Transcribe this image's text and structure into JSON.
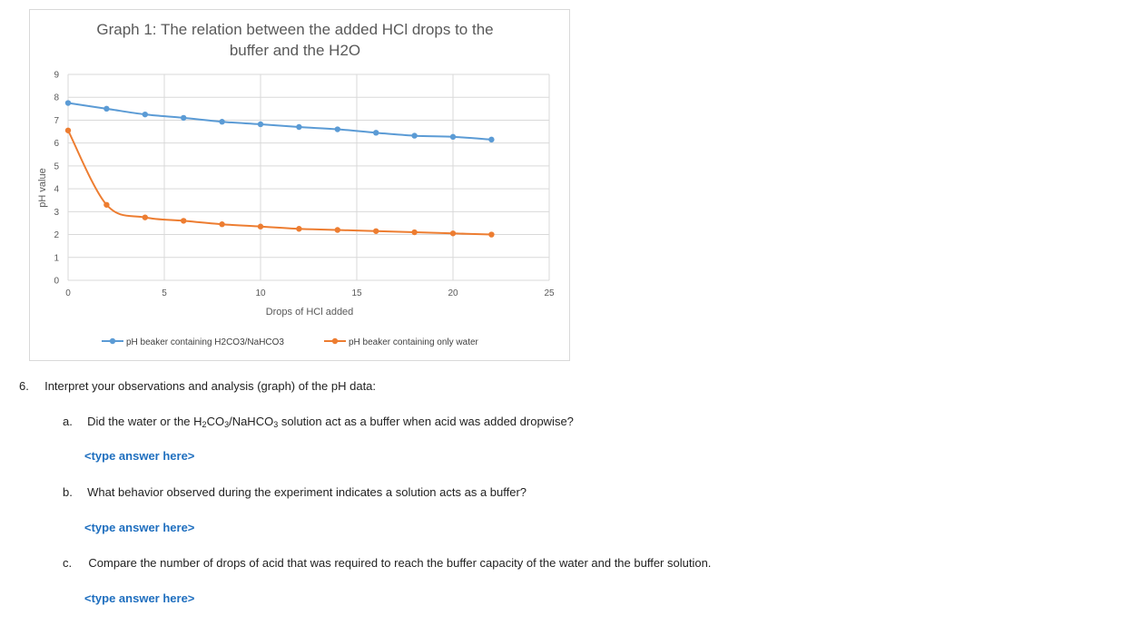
{
  "chart_data": {
    "type": "line",
    "title_line1": "Graph 1: The relation between the added HCl drops to the",
    "title_line2": "buffer and the H2O",
    "xlabel": "Drops of HCl added",
    "ylabel": "pH value",
    "xlim": [
      0,
      25
    ],
    "ylim": [
      0,
      9
    ],
    "x_ticks": [
      0,
      5,
      10,
      15,
      20,
      25
    ],
    "y_ticks": [
      0,
      1,
      2,
      3,
      4,
      5,
      6,
      7,
      8,
      9
    ],
    "grid": true,
    "legend_position": "bottom",
    "x": [
      0,
      2,
      4,
      6,
      8,
      10,
      12,
      14,
      16,
      18,
      20,
      22
    ],
    "series": [
      {
        "name": "pH beaker containing H2CO3/NaHCO3",
        "color": "#5b9bd5",
        "values": [
          7.75,
          7.5,
          7.25,
          7.1,
          6.93,
          6.82,
          6.7,
          6.6,
          6.45,
          6.32,
          6.27,
          6.15
        ]
      },
      {
        "name": "pH beaker containing only water",
        "color": "#ed7d31",
        "values": [
          6.55,
          3.3,
          2.75,
          2.6,
          2.45,
          2.35,
          2.25,
          2.2,
          2.15,
          2.1,
          2.05,
          2.0
        ]
      }
    ]
  },
  "questions": {
    "q6_number": "6.",
    "q6_text": "Interpret your observations and analysis (graph) of the pH data:",
    "a_letter": "a.",
    "a_text_before": "Did the water or the H",
    "a_sub1": "2",
    "a_text_mid1": "CO",
    "a_sub2": "3",
    "a_text_mid2": "/NaHCO",
    "a_sub3": "3",
    "a_text_after": " solution act as a buffer when acid was added dropwise?",
    "a_answer": "<type answer here>",
    "b_letter": "b.",
    "b_text": "What behavior observed during the experiment indicates a solution acts as a buffer?",
    "b_answer": "<type answer here>",
    "c_letter": "c.",
    "c_text": "Compare the number of drops of acid that was required to reach the buffer capacity of the water and the buffer solution.",
    "c_answer": "<type answer here>"
  }
}
